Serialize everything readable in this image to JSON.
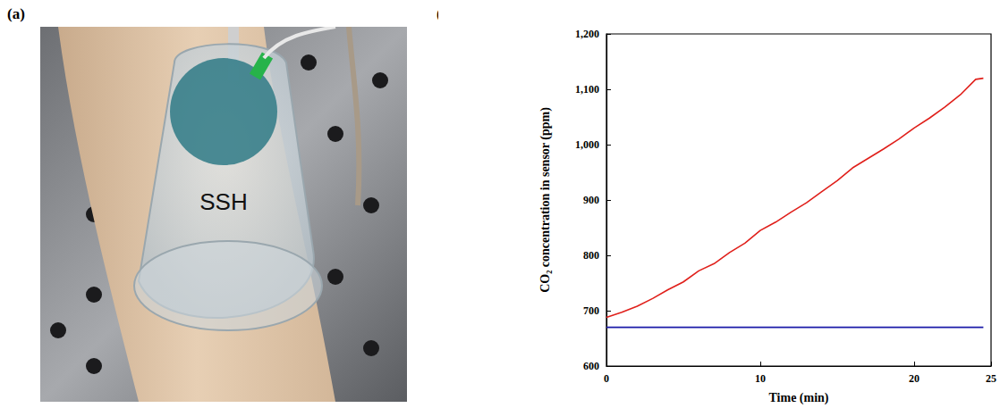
{
  "panels": {
    "a": {
      "label": "(a)",
      "photo_text": "SSH"
    },
    "b": {
      "label": "(b)"
    }
  },
  "chart_data": {
    "type": "line",
    "x_label": "Time (min)",
    "y_label": "CO₂ concentration in sensor (ppm)",
    "x": [
      0,
      1,
      2,
      3,
      4,
      5,
      6,
      7,
      8,
      9,
      10,
      11,
      12,
      13,
      14,
      15,
      16,
      17,
      18,
      19,
      20,
      21,
      22,
      23,
      24,
      24.5
    ],
    "series": [
      {
        "color": "#e0201b",
        "values": [
          688,
          697,
          708,
          722,
          738,
          752,
          772,
          785,
          805,
          822,
          845,
          860,
          878,
          895,
          915,
          935,
          958,
          975,
          992,
          1010,
          1030,
          1048,
          1068,
          1090,
          1118,
          1120
        ]
      },
      {
        "color": "#1a1aa8",
        "values": [
          670,
          670,
          670,
          670,
          670,
          670,
          670,
          670,
          670,
          670,
          670,
          670,
          670,
          670,
          670,
          670,
          670,
          670,
          670,
          670,
          670,
          670,
          670,
          670,
          670,
          670
        ]
      }
    ],
    "xlim": [
      0,
      25
    ],
    "xticks": [
      0,
      10,
      20
    ],
    "ylim": [
      600,
      1200
    ],
    "yticks": [
      600,
      700,
      800,
      900,
      1000,
      1100,
      1200
    ],
    "grid": false
  }
}
